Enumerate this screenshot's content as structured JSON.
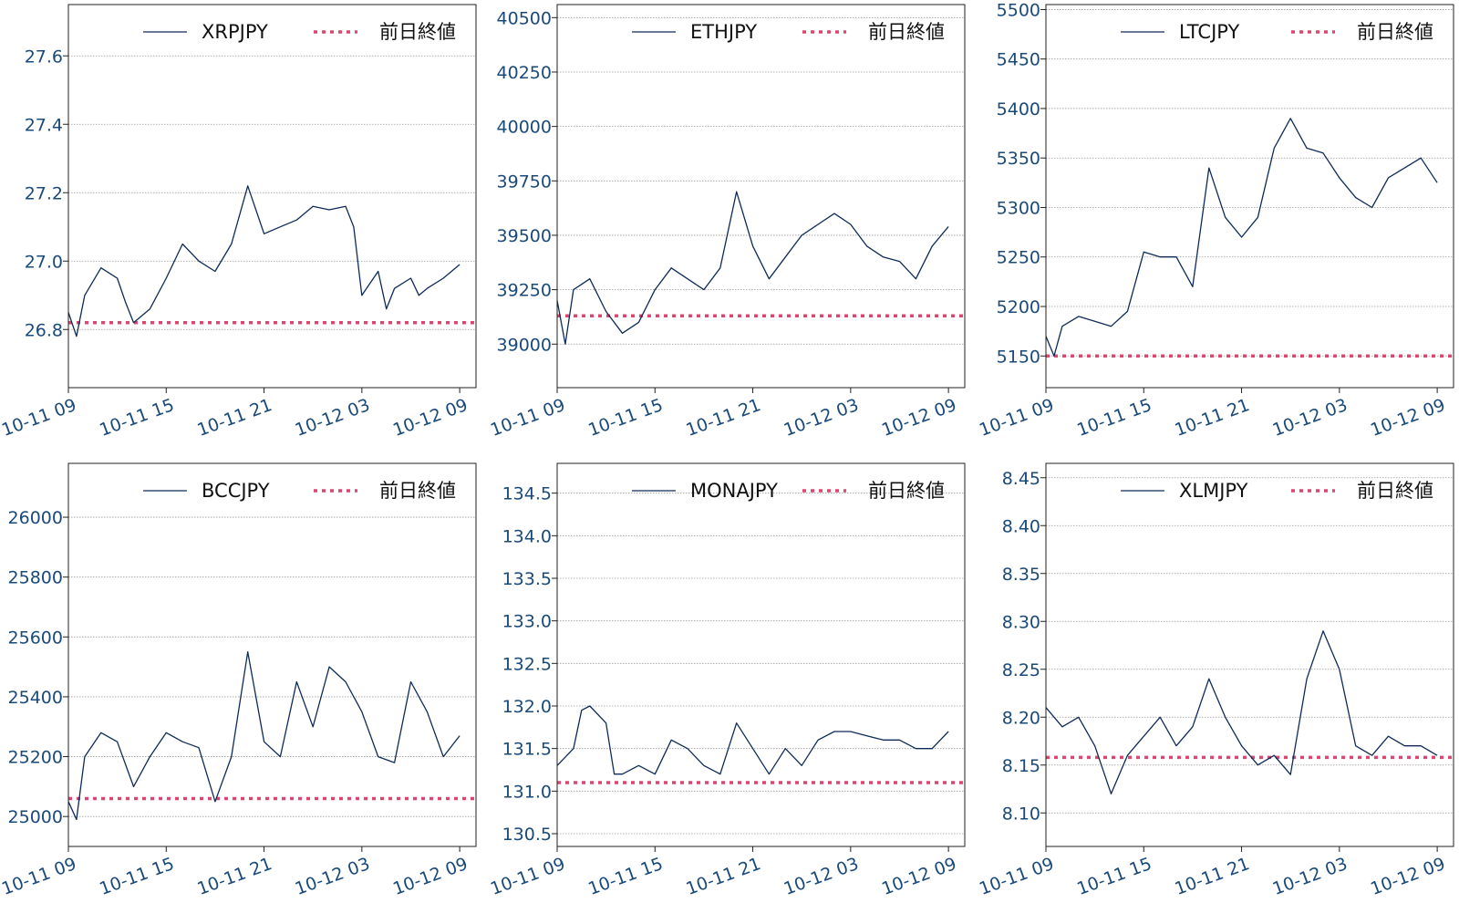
{
  "colors": {
    "series": "#0d2b57",
    "reference": "#e0456f",
    "grid": "#9a9a9a",
    "axis": "#222222",
    "tick_text": "#1a4a7a"
  },
  "chart_data": [
    {
      "type": "line",
      "legend": {
        "series_label": "XRPJPY",
        "reference_label": "前日終値",
        "position": "top-right"
      },
      "x_range": [
        "10-11 09:00",
        "10-12 10:00"
      ],
      "x_ticks": [
        "10-11 09",
        "10-11 15",
        "10-11 21",
        "10-12 03",
        "10-12 09"
      ],
      "y_range": [
        26.63,
        27.75
      ],
      "y_ticks": [
        "26.8",
        "27.0",
        "27.2",
        "27.4",
        "27.6"
      ],
      "grid": "horizontal-dotted",
      "reference_value": 26.82,
      "series": [
        {
          "name": "XRPJPY",
          "points": [
            [
              "10-11 09:00",
              26.85
            ],
            [
              "10-11 09:30",
              26.78
            ],
            [
              "10-11 10:00",
              26.9
            ],
            [
              "10-11 11:00",
              26.98
            ],
            [
              "10-11 12:00",
              26.95
            ],
            [
              "10-11 12:30",
              26.88
            ],
            [
              "10-11 13:00",
              26.82
            ],
            [
              "10-11 14:00",
              26.86
            ],
            [
              "10-11 15:00",
              26.95
            ],
            [
              "10-11 16:00",
              27.05
            ],
            [
              "10-11 17:00",
              27.0
            ],
            [
              "10-11 18:00",
              26.97
            ],
            [
              "10-11 19:00",
              27.05
            ],
            [
              "10-11 20:00",
              27.22
            ],
            [
              "10-11 21:00",
              27.08
            ],
            [
              "10-11 22:00",
              27.1
            ],
            [
              "10-11 23:00",
              27.12
            ],
            [
              "10-12 00:00",
              27.16
            ],
            [
              "10-12 01:00",
              27.15
            ],
            [
              "10-12 02:00",
              27.16
            ],
            [
              "10-12 02:30",
              27.1
            ],
            [
              "10-12 03:00",
              26.9
            ],
            [
              "10-12 04:00",
              26.97
            ],
            [
              "10-12 04:30",
              26.86
            ],
            [
              "10-12 05:00",
              26.92
            ],
            [
              "10-12 06:00",
              26.95
            ],
            [
              "10-12 06:30",
              26.9
            ],
            [
              "10-12 07:00",
              26.92
            ],
            [
              "10-12 08:00",
              26.95
            ],
            [
              "10-12 09:00",
              26.99
            ]
          ]
        }
      ]
    },
    {
      "type": "line",
      "legend": {
        "series_label": "ETHJPY",
        "reference_label": "前日終値",
        "position": "top-right"
      },
      "x_range": [
        "10-11 09:00",
        "10-12 10:00"
      ],
      "x_ticks": [
        "10-11 09",
        "10-11 15",
        "10-11 21",
        "10-12 03",
        "10-12 09"
      ],
      "y_range": [
        38800,
        40560
      ],
      "y_ticks": [
        "39000",
        "39250",
        "39500",
        "39750",
        "40000",
        "40250",
        "40500"
      ],
      "grid": "horizontal-dotted",
      "reference_value": 39130,
      "series": [
        {
          "name": "ETHJPY",
          "points": [
            [
              "10-11 09:00",
              39200
            ],
            [
              "10-11 09:30",
              39000
            ],
            [
              "10-11 10:00",
              39250
            ],
            [
              "10-11 11:00",
              39300
            ],
            [
              "10-11 12:00",
              39150
            ],
            [
              "10-11 13:00",
              39050
            ],
            [
              "10-11 14:00",
              39100
            ],
            [
              "10-11 15:00",
              39250
            ],
            [
              "10-11 16:00",
              39350
            ],
            [
              "10-11 17:00",
              39300
            ],
            [
              "10-11 18:00",
              39250
            ],
            [
              "10-11 19:00",
              39350
            ],
            [
              "10-11 20:00",
              39700
            ],
            [
              "10-11 21:00",
              39450
            ],
            [
              "10-11 22:00",
              39300
            ],
            [
              "10-11 23:00",
              39400
            ],
            [
              "10-12 00:00",
              39500
            ],
            [
              "10-12 01:00",
              39550
            ],
            [
              "10-12 02:00",
              39600
            ],
            [
              "10-12 03:00",
              39550
            ],
            [
              "10-12 04:00",
              39450
            ],
            [
              "10-12 05:00",
              39400
            ],
            [
              "10-12 06:00",
              39380
            ],
            [
              "10-12 07:00",
              39300
            ],
            [
              "10-12 08:00",
              39450
            ],
            [
              "10-12 09:00",
              39540
            ]
          ]
        }
      ]
    },
    {
      "type": "line",
      "legend": {
        "series_label": "LTCJPY",
        "reference_label": "前日終値",
        "position": "top-right"
      },
      "x_range": [
        "10-11 09:00",
        "10-12 10:00"
      ],
      "x_ticks": [
        "10-11 09",
        "10-11 15",
        "10-11 21",
        "10-12 03",
        "10-12 09"
      ],
      "y_range": [
        5118,
        5505
      ],
      "y_ticks": [
        "5150",
        "5200",
        "5250",
        "5300",
        "5350",
        "5400",
        "5450",
        "5500"
      ],
      "grid": "horizontal-dotted",
      "reference_value": 5150,
      "series": [
        {
          "name": "LTCJPY",
          "points": [
            [
              "10-11 09:00",
              5170
            ],
            [
              "10-11 09:30",
              5150
            ],
            [
              "10-11 10:00",
              5180
            ],
            [
              "10-11 11:00",
              5190
            ],
            [
              "10-11 12:00",
              5185
            ],
            [
              "10-11 13:00",
              5180
            ],
            [
              "10-11 14:00",
              5195
            ],
            [
              "10-11 15:00",
              5255
            ],
            [
              "10-11 16:00",
              5250
            ],
            [
              "10-11 17:00",
              5250
            ],
            [
              "10-11 18:00",
              5220
            ],
            [
              "10-11 19:00",
              5340
            ],
            [
              "10-11 20:00",
              5290
            ],
            [
              "10-11 21:00",
              5270
            ],
            [
              "10-11 22:00",
              5290
            ],
            [
              "10-11 23:00",
              5360
            ],
            [
              "10-12 00:00",
              5390
            ],
            [
              "10-12 01:00",
              5360
            ],
            [
              "10-12 02:00",
              5355
            ],
            [
              "10-12 03:00",
              5330
            ],
            [
              "10-12 04:00",
              5310
            ],
            [
              "10-12 05:00",
              5300
            ],
            [
              "10-12 06:00",
              5330
            ],
            [
              "10-12 07:00",
              5340
            ],
            [
              "10-12 08:00",
              5350
            ],
            [
              "10-12 09:00",
              5325
            ]
          ]
        }
      ]
    },
    {
      "type": "line",
      "legend": {
        "series_label": "BCCJPY",
        "reference_label": "前日終値",
        "position": "top-right"
      },
      "x_range": [
        "10-11 09:00",
        "10-12 10:00"
      ],
      "x_ticks": [
        "10-11 09",
        "10-11 15",
        "10-11 21",
        "10-12 03",
        "10-12 09"
      ],
      "y_range": [
        24900,
        26180
      ],
      "y_ticks": [
        "25000",
        "25200",
        "25400",
        "25600",
        "25800",
        "26000"
      ],
      "grid": "horizontal-dotted",
      "reference_value": 25060,
      "series": [
        {
          "name": "BCCJPY",
          "points": [
            [
              "10-11 09:00",
              25050
            ],
            [
              "10-11 09:30",
              24990
            ],
            [
              "10-11 10:00",
              25200
            ],
            [
              "10-11 11:00",
              25280
            ],
            [
              "10-11 12:00",
              25250
            ],
            [
              "10-11 13:00",
              25100
            ],
            [
              "10-11 14:00",
              25200
            ],
            [
              "10-11 15:00",
              25280
            ],
            [
              "10-11 16:00",
              25250
            ],
            [
              "10-11 17:00",
              25230
            ],
            [
              "10-11 18:00",
              25050
            ],
            [
              "10-11 19:00",
              25200
            ],
            [
              "10-11 20:00",
              25550
            ],
            [
              "10-11 21:00",
              25250
            ],
            [
              "10-11 22:00",
              25200
            ],
            [
              "10-11 23:00",
              25450
            ],
            [
              "10-12 00:00",
              25300
            ],
            [
              "10-12 01:00",
              25500
            ],
            [
              "10-12 02:00",
              25450
            ],
            [
              "10-12 03:00",
              25350
            ],
            [
              "10-12 04:00",
              25200
            ],
            [
              "10-12 05:00",
              25180
            ],
            [
              "10-12 06:00",
              25450
            ],
            [
              "10-12 07:00",
              25350
            ],
            [
              "10-12 08:00",
              25200
            ],
            [
              "10-12 09:00",
              25270
            ]
          ]
        }
      ]
    },
    {
      "type": "line",
      "legend": {
        "series_label": "MONAJPY",
        "reference_label": "前日終値",
        "position": "top-right"
      },
      "x_range": [
        "10-11 09:00",
        "10-12 10:00"
      ],
      "x_ticks": [
        "10-11 09",
        "10-11 15",
        "10-11 21",
        "10-12 03",
        "10-12 09"
      ],
      "y_range": [
        130.35,
        134.85
      ],
      "y_ticks": [
        "130.5",
        "131.0",
        "131.5",
        "132.0",
        "132.5",
        "133.0",
        "133.5",
        "134.0",
        "134.5"
      ],
      "grid": "horizontal-dotted",
      "reference_value": 131.1,
      "series": [
        {
          "name": "MONAJPY",
          "points": [
            [
              "10-11 09:00",
              131.3
            ],
            [
              "10-11 10:00",
              131.5
            ],
            [
              "10-11 10:30",
              131.95
            ],
            [
              "10-11 11:00",
              132.0
            ],
            [
              "10-11 12:00",
              131.8
            ],
            [
              "10-11 12:30",
              131.2
            ],
            [
              "10-11 13:00",
              131.2
            ],
            [
              "10-11 14:00",
              131.3
            ],
            [
              "10-11 15:00",
              131.2
            ],
            [
              "10-11 16:00",
              131.6
            ],
            [
              "10-11 17:00",
              131.5
            ],
            [
              "10-11 18:00",
              131.3
            ],
            [
              "10-11 19:00",
              131.2
            ],
            [
              "10-11 20:00",
              131.8
            ],
            [
              "10-11 21:00",
              131.5
            ],
            [
              "10-11 22:00",
              131.2
            ],
            [
              "10-11 23:00",
              131.5
            ],
            [
              "10-12 00:00",
              131.3
            ],
            [
              "10-12 01:00",
              131.6
            ],
            [
              "10-12 02:00",
              131.7
            ],
            [
              "10-12 03:00",
              131.7
            ],
            [
              "10-12 04:00",
              131.65
            ],
            [
              "10-12 05:00",
              131.6
            ],
            [
              "10-12 06:00",
              131.6
            ],
            [
              "10-12 07:00",
              131.5
            ],
            [
              "10-12 08:00",
              131.5
            ],
            [
              "10-12 09:00",
              131.7
            ]
          ]
        }
      ]
    },
    {
      "type": "line",
      "legend": {
        "series_label": "XLMJPY",
        "reference_label": "前日終値",
        "position": "top-right"
      },
      "x_range": [
        "10-11 09:00",
        "10-12 10:00"
      ],
      "x_ticks": [
        "10-11 09",
        "10-11 15",
        "10-11 21",
        "10-12 03",
        "10-12 09"
      ],
      "y_range": [
        8.065,
        8.465
      ],
      "y_ticks": [
        "8.10",
        "8.15",
        "8.20",
        "8.25",
        "8.30",
        "8.35",
        "8.40",
        "8.45"
      ],
      "grid": "horizontal-dotted",
      "reference_value": 8.158,
      "series": [
        {
          "name": "XLMJPY",
          "points": [
            [
              "10-11 09:00",
              8.21
            ],
            [
              "10-11 10:00",
              8.19
            ],
            [
              "10-11 11:00",
              8.2
            ],
            [
              "10-11 12:00",
              8.17
            ],
            [
              "10-11 13:00",
              8.12
            ],
            [
              "10-11 14:00",
              8.16
            ],
            [
              "10-11 15:00",
              8.18
            ],
            [
              "10-11 16:00",
              8.2
            ],
            [
              "10-11 17:00",
              8.17
            ],
            [
              "10-11 18:00",
              8.19
            ],
            [
              "10-11 19:00",
              8.24
            ],
            [
              "10-11 20:00",
              8.2
            ],
            [
              "10-11 21:00",
              8.17
            ],
            [
              "10-11 22:00",
              8.15
            ],
            [
              "10-11 23:00",
              8.16
            ],
            [
              "10-12 00:00",
              8.14
            ],
            [
              "10-12 01:00",
              8.24
            ],
            [
              "10-12 02:00",
              8.29
            ],
            [
              "10-12 03:00",
              8.25
            ],
            [
              "10-12 04:00",
              8.17
            ],
            [
              "10-12 05:00",
              8.16
            ],
            [
              "10-12 06:00",
              8.18
            ],
            [
              "10-12 07:00",
              8.17
            ],
            [
              "10-12 08:00",
              8.17
            ],
            [
              "10-12 09:00",
              8.16
            ]
          ]
        }
      ]
    }
  ]
}
